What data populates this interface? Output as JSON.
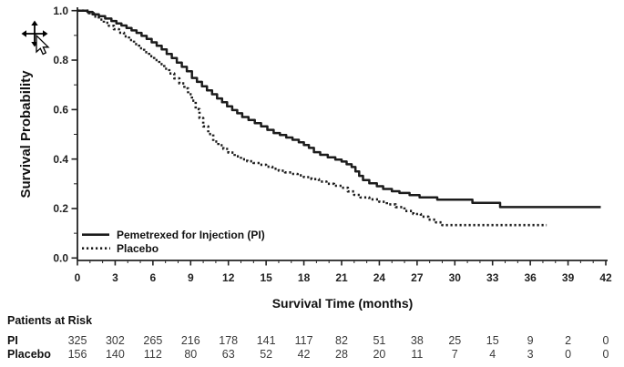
{
  "cursor": {
    "icon": "move-drag-cursor"
  },
  "chart_data": {
    "type": "line",
    "subtype": "kaplan-meier-step",
    "title": "",
    "xlabel": "Survival Time (months)",
    "ylabel": "Survival Probability",
    "xlim": [
      0,
      42
    ],
    "ylim": [
      0.0,
      1.0
    ],
    "x_ticks": [
      "0",
      "3",
      "6",
      "9",
      "12",
      "15",
      "18",
      "21",
      "24",
      "27",
      "30",
      "33",
      "36",
      "39",
      "42"
    ],
    "y_ticks": [
      "0.0",
      "0.2",
      "0.4",
      "0.6",
      "0.8",
      "1.0"
    ],
    "x_tick_step": 3,
    "x_minor_step": 1,
    "y_minor_step": 0.1,
    "grid": false,
    "legend_position": "inside-bottom-left",
    "axis_color": "#222222",
    "series": [
      {
        "name": "Pemetrexed for Injection (PI)",
        "line_style": "solid",
        "color": "#1c1c1c",
        "points": [
          [
            0,
            1.0
          ],
          [
            0.8,
            0.995
          ],
          [
            1.2,
            0.985
          ],
          [
            1.7,
            0.978
          ],
          [
            2.2,
            0.968
          ],
          [
            2.7,
            0.958
          ],
          [
            3.1,
            0.948
          ],
          [
            3.5,
            0.94
          ],
          [
            3.9,
            0.93
          ],
          [
            4.3,
            0.92
          ],
          [
            4.7,
            0.91
          ],
          [
            5.1,
            0.898
          ],
          [
            5.5,
            0.886
          ],
          [
            5.9,
            0.872
          ],
          [
            6.3,
            0.858
          ],
          [
            6.7,
            0.843
          ],
          [
            7.1,
            0.825
          ],
          [
            7.5,
            0.808
          ],
          [
            7.9,
            0.79
          ],
          [
            8.3,
            0.773
          ],
          [
            8.7,
            0.755
          ],
          [
            9.1,
            0.728
          ],
          [
            9.5,
            0.712
          ],
          [
            9.9,
            0.694
          ],
          [
            10.3,
            0.678
          ],
          [
            10.7,
            0.662
          ],
          [
            11.1,
            0.645
          ],
          [
            11.5,
            0.63
          ],
          [
            11.9,
            0.613
          ],
          [
            12.3,
            0.598
          ],
          [
            12.7,
            0.585
          ],
          [
            13.1,
            0.57
          ],
          [
            13.6,
            0.558
          ],
          [
            14.1,
            0.545
          ],
          [
            14.6,
            0.532
          ],
          [
            15.1,
            0.518
          ],
          [
            15.6,
            0.505
          ],
          [
            16.1,
            0.497
          ],
          [
            16.6,
            0.487
          ],
          [
            17.1,
            0.478
          ],
          [
            17.6,
            0.468
          ],
          [
            18.0,
            0.457
          ],
          [
            18.4,
            0.445
          ],
          [
            18.8,
            0.428
          ],
          [
            19.3,
            0.417
          ],
          [
            19.9,
            0.407
          ],
          [
            20.5,
            0.398
          ],
          [
            21.0,
            0.39
          ],
          [
            21.4,
            0.379
          ],
          [
            21.8,
            0.368
          ],
          [
            22.1,
            0.35
          ],
          [
            22.4,
            0.332
          ],
          [
            22.7,
            0.315
          ],
          [
            23.2,
            0.302
          ],
          [
            23.8,
            0.29
          ],
          [
            24.3,
            0.279
          ],
          [
            25.0,
            0.27
          ],
          [
            25.6,
            0.263
          ],
          [
            26.4,
            0.254
          ],
          [
            27.2,
            0.245
          ],
          [
            28.6,
            0.236
          ],
          [
            31.4,
            0.223
          ],
          [
            33.6,
            0.206
          ],
          [
            41.6,
            0.206
          ]
        ]
      },
      {
        "name": "Placebo",
        "line_style": "dotted",
        "color": "#1c1c1c",
        "points": [
          [
            0,
            1.0
          ],
          [
            0.9,
            0.99
          ],
          [
            1.3,
            0.976
          ],
          [
            1.7,
            0.964
          ],
          [
            2.1,
            0.951
          ],
          [
            2.5,
            0.939
          ],
          [
            2.9,
            0.925
          ],
          [
            3.3,
            0.911
          ],
          [
            3.7,
            0.896
          ],
          [
            4.1,
            0.881
          ],
          [
            4.5,
            0.865
          ],
          [
            4.9,
            0.848
          ],
          [
            5.3,
            0.832
          ],
          [
            5.7,
            0.816
          ],
          [
            6.1,
            0.8
          ],
          [
            6.5,
            0.784
          ],
          [
            6.9,
            0.765
          ],
          [
            7.3,
            0.746
          ],
          [
            7.7,
            0.726
          ],
          [
            8.1,
            0.706
          ],
          [
            8.5,
            0.686
          ],
          [
            8.8,
            0.662
          ],
          [
            9.1,
            0.636
          ],
          [
            9.4,
            0.602
          ],
          [
            9.7,
            0.566
          ],
          [
            10.0,
            0.532
          ],
          [
            10.4,
            0.501
          ],
          [
            10.8,
            0.471
          ],
          [
            11.2,
            0.456
          ],
          [
            11.6,
            0.441
          ],
          [
            12.0,
            0.426
          ],
          [
            12.5,
            0.411
          ],
          [
            13.0,
            0.399
          ],
          [
            13.5,
            0.391
          ],
          [
            14.0,
            0.384
          ],
          [
            14.5,
            0.377
          ],
          [
            15.0,
            0.369
          ],
          [
            15.5,
            0.361
          ],
          [
            16.0,
            0.353
          ],
          [
            16.5,
            0.346
          ],
          [
            17.0,
            0.34
          ],
          [
            17.5,
            0.334
          ],
          [
            18.0,
            0.327
          ],
          [
            18.6,
            0.319
          ],
          [
            19.2,
            0.309
          ],
          [
            19.8,
            0.3
          ],
          [
            20.4,
            0.292
          ],
          [
            21.0,
            0.284
          ],
          [
            21.5,
            0.269
          ],
          [
            22.0,
            0.255
          ],
          [
            22.5,
            0.245
          ],
          [
            23.2,
            0.237
          ],
          [
            24.0,
            0.227
          ],
          [
            24.6,
            0.217
          ],
          [
            25.3,
            0.206
          ],
          [
            26.0,
            0.19
          ],
          [
            26.7,
            0.178
          ],
          [
            27.3,
            0.167
          ],
          [
            27.9,
            0.155
          ],
          [
            28.5,
            0.144
          ],
          [
            29.0,
            0.133
          ],
          [
            37.3,
            0.133
          ]
        ]
      }
    ]
  },
  "risk_table": {
    "title": "Patients at Risk",
    "time_points": [
      0,
      3,
      6,
      9,
      12,
      15,
      18,
      21,
      24,
      27,
      30,
      33,
      36,
      39,
      42
    ],
    "rows": [
      {
        "label": "PI",
        "counts": [
          "325",
          "302",
          "265",
          "216",
          "178",
          "141",
          "117",
          "82",
          "51",
          "38",
          "25",
          "15",
          "9",
          "2",
          "0"
        ]
      },
      {
        "label": "Placebo",
        "counts": [
          "156",
          "140",
          "112",
          "80",
          "63",
          "52",
          "42",
          "28",
          "20",
          "11",
          "7",
          "4",
          "3",
          "0",
          "0"
        ]
      }
    ]
  }
}
